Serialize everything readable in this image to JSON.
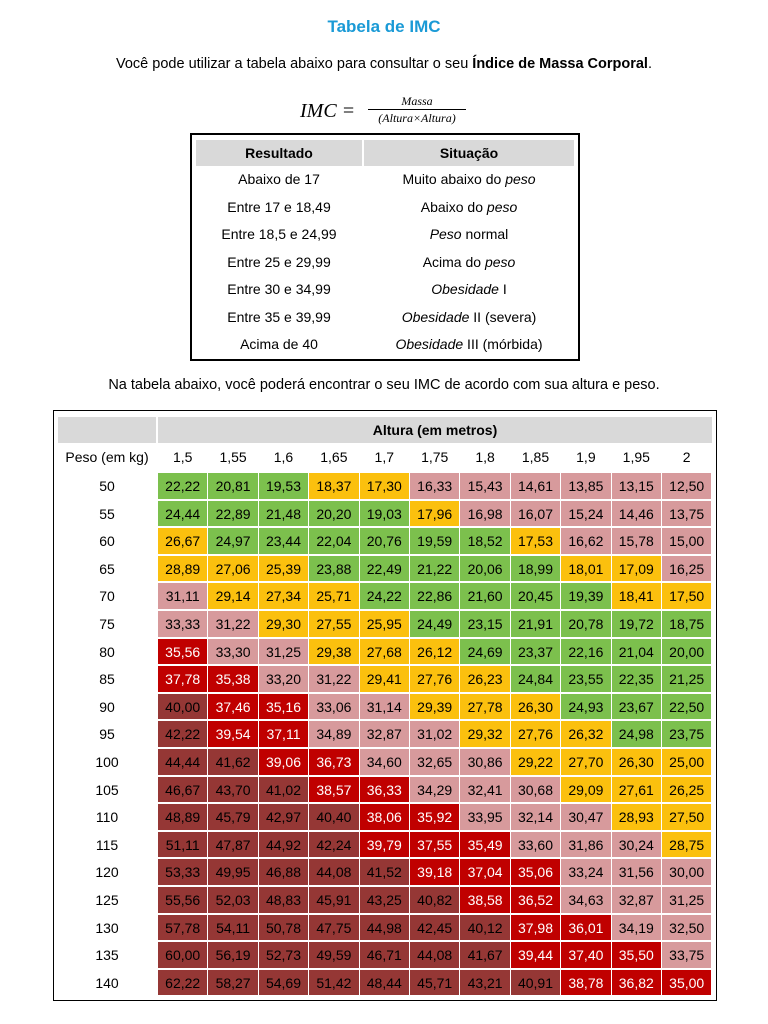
{
  "title": "Tabela de IMC",
  "intro": {
    "text": "Você pode utilizar a tabela abaixo para consultar o seu ",
    "bold": "Índice de Massa Corporal",
    "end": "."
  },
  "formula": {
    "lhs": "IMC =",
    "numerator": "Massa",
    "denominator": "(Altura×Altura)"
  },
  "results_table": {
    "headers": [
      "Resultado",
      "Situação"
    ],
    "rows": [
      {
        "result": "Abaixo de 17",
        "pre": "Muito abaixo do ",
        "em": "peso",
        "post": ""
      },
      {
        "result": "Entre 17 e 18,49",
        "pre": "Abaixo do ",
        "em": "peso",
        "post": ""
      },
      {
        "result": "Entre 18,5 e 24,99",
        "pre": "",
        "em": "Peso",
        "post": " normal"
      },
      {
        "result": "Entre 25 e 29,99",
        "pre": "Acima do ",
        "em": "peso",
        "post": ""
      },
      {
        "result": "Entre 30 e 34,99",
        "pre": "",
        "em": "Obesidade",
        "post": " I"
      },
      {
        "result": "Entre 35 e 39,99",
        "pre": "",
        "em": "Obesidade",
        "post": " II (severa)"
      },
      {
        "result": "Acima de 40",
        "pre": "",
        "em": "Obesidade",
        "post": " III (mórbida)"
      }
    ]
  },
  "middle_text": "Na tabela abaixo, você poderá encontrar o seu IMC de acordo com sua altura e peso.",
  "imc_grid": {
    "height_header": "Altura (em metros)",
    "weight_label": "Peso (em kg)",
    "heights": [
      "1,5",
      "1,55",
      "1,6",
      "1,65",
      "1,7",
      "1,75",
      "1,8",
      "1,85",
      "1,9",
      "1,95",
      "2"
    ],
    "colors": {
      "g": "#7cc04d",
      "y": "#fbc00e",
      "p": "#d79a9c",
      "r": "#c00000",
      "d": "#953735"
    },
    "rows": [
      {
        "weight": "50",
        "values": [
          "22,22",
          "20,81",
          "19,53",
          "18,37",
          "17,30",
          "16,33",
          "15,43",
          "14,61",
          "13,85",
          "13,15",
          "12,50"
        ],
        "classes": [
          "g",
          "g",
          "g",
          "y",
          "y",
          "p",
          "p",
          "p",
          "p",
          "p",
          "p"
        ]
      },
      {
        "weight": "55",
        "values": [
          "24,44",
          "22,89",
          "21,48",
          "20,20",
          "19,03",
          "17,96",
          "16,98",
          "16,07",
          "15,24",
          "14,46",
          "13,75"
        ],
        "classes": [
          "g",
          "g",
          "g",
          "g",
          "g",
          "y",
          "p",
          "p",
          "p",
          "p",
          "p"
        ]
      },
      {
        "weight": "60",
        "values": [
          "26,67",
          "24,97",
          "23,44",
          "22,04",
          "20,76",
          "19,59",
          "18,52",
          "17,53",
          "16,62",
          "15,78",
          "15,00"
        ],
        "classes": [
          "y",
          "g",
          "g",
          "g",
          "g",
          "g",
          "g",
          "y",
          "p",
          "p",
          "p"
        ]
      },
      {
        "weight": "65",
        "values": [
          "28,89",
          "27,06",
          "25,39",
          "23,88",
          "22,49",
          "21,22",
          "20,06",
          "18,99",
          "18,01",
          "17,09",
          "16,25"
        ],
        "classes": [
          "y",
          "y",
          "y",
          "g",
          "g",
          "g",
          "g",
          "g",
          "y",
          "y",
          "p"
        ]
      },
      {
        "weight": "70",
        "values": [
          "31,11",
          "29,14",
          "27,34",
          "25,71",
          "24,22",
          "22,86",
          "21,60",
          "20,45",
          "19,39",
          "18,41",
          "17,50"
        ],
        "classes": [
          "p",
          "y",
          "y",
          "y",
          "g",
          "g",
          "g",
          "g",
          "g",
          "y",
          "y"
        ]
      },
      {
        "weight": "75",
        "values": [
          "33,33",
          "31,22",
          "29,30",
          "27,55",
          "25,95",
          "24,49",
          "23,15",
          "21,91",
          "20,78",
          "19,72",
          "18,75"
        ],
        "classes": [
          "p",
          "p",
          "y",
          "y",
          "y",
          "g",
          "g",
          "g",
          "g",
          "g",
          "g"
        ]
      },
      {
        "weight": "80",
        "values": [
          "35,56",
          "33,30",
          "31,25",
          "29,38",
          "27,68",
          "26,12",
          "24,69",
          "23,37",
          "22,16",
          "21,04",
          "20,00"
        ],
        "classes": [
          "r",
          "p",
          "p",
          "y",
          "y",
          "y",
          "g",
          "g",
          "g",
          "g",
          "g"
        ]
      },
      {
        "weight": "85",
        "values": [
          "37,78",
          "35,38",
          "33,20",
          "31,22",
          "29,41",
          "27,76",
          "26,23",
          "24,84",
          "23,55",
          "22,35",
          "21,25"
        ],
        "classes": [
          "r",
          "r",
          "p",
          "p",
          "y",
          "y",
          "y",
          "g",
          "g",
          "g",
          "g"
        ]
      },
      {
        "weight": "90",
        "values": [
          "40,00",
          "37,46",
          "35,16",
          "33,06",
          "31,14",
          "29,39",
          "27,78",
          "26,30",
          "24,93",
          "23,67",
          "22,50"
        ],
        "classes": [
          "d",
          "r",
          "r",
          "p",
          "p",
          "y",
          "y",
          "y",
          "g",
          "g",
          "g"
        ]
      },
      {
        "weight": "95",
        "values": [
          "42,22",
          "39,54",
          "37,11",
          "34,89",
          "32,87",
          "31,02",
          "29,32",
          "27,76",
          "26,32",
          "24,98",
          "23,75"
        ],
        "classes": [
          "d",
          "r",
          "r",
          "p",
          "p",
          "p",
          "y",
          "y",
          "y",
          "g",
          "g"
        ]
      },
      {
        "weight": "100",
        "values": [
          "44,44",
          "41,62",
          "39,06",
          "36,73",
          "34,60",
          "32,65",
          "30,86",
          "29,22",
          "27,70",
          "26,30",
          "25,00"
        ],
        "classes": [
          "d",
          "d",
          "r",
          "r",
          "p",
          "p",
          "p",
          "y",
          "y",
          "y",
          "y"
        ]
      },
      {
        "weight": "105",
        "values": [
          "46,67",
          "43,70",
          "41,02",
          "38,57",
          "36,33",
          "34,29",
          "32,41",
          "30,68",
          "29,09",
          "27,61",
          "26,25"
        ],
        "classes": [
          "d",
          "d",
          "d",
          "r",
          "r",
          "p",
          "p",
          "p",
          "y",
          "y",
          "y"
        ]
      },
      {
        "weight": "110",
        "values": [
          "48,89",
          "45,79",
          "42,97",
          "40,40",
          "38,06",
          "35,92",
          "33,95",
          "32,14",
          "30,47",
          "28,93",
          "27,50"
        ],
        "classes": [
          "d",
          "d",
          "d",
          "d",
          "r",
          "r",
          "p",
          "p",
          "p",
          "y",
          "y"
        ]
      },
      {
        "weight": "115",
        "values": [
          "51,11",
          "47,87",
          "44,92",
          "42,24",
          "39,79",
          "37,55",
          "35,49",
          "33,60",
          "31,86",
          "30,24",
          "28,75"
        ],
        "classes": [
          "d",
          "d",
          "d",
          "d",
          "r",
          "r",
          "r",
          "p",
          "p",
          "p",
          "y"
        ]
      },
      {
        "weight": "120",
        "values": [
          "53,33",
          "49,95",
          "46,88",
          "44,08",
          "41,52",
          "39,18",
          "37,04",
          "35,06",
          "33,24",
          "31,56",
          "30,00"
        ],
        "classes": [
          "d",
          "d",
          "d",
          "d",
          "d",
          "r",
          "r",
          "r",
          "p",
          "p",
          "p"
        ]
      },
      {
        "weight": "125",
        "values": [
          "55,56",
          "52,03",
          "48,83",
          "45,91",
          "43,25",
          "40,82",
          "38,58",
          "36,52",
          "34,63",
          "32,87",
          "31,25"
        ],
        "classes": [
          "d",
          "d",
          "d",
          "d",
          "d",
          "d",
          "r",
          "r",
          "p",
          "p",
          "p"
        ]
      },
      {
        "weight": "130",
        "values": [
          "57,78",
          "54,11",
          "50,78",
          "47,75",
          "44,98",
          "42,45",
          "40,12",
          "37,98",
          "36,01",
          "34,19",
          "32,50"
        ],
        "classes": [
          "d",
          "d",
          "d",
          "d",
          "d",
          "d",
          "d",
          "r",
          "r",
          "p",
          "p"
        ]
      },
      {
        "weight": "135",
        "values": [
          "60,00",
          "56,19",
          "52,73",
          "49,59",
          "46,71",
          "44,08",
          "41,67",
          "39,44",
          "37,40",
          "35,50",
          "33,75"
        ],
        "classes": [
          "d",
          "d",
          "d",
          "d",
          "d",
          "d",
          "d",
          "r",
          "r",
          "r",
          "p"
        ]
      },
      {
        "weight": "140",
        "values": [
          "62,22",
          "58,27",
          "54,69",
          "51,42",
          "48,44",
          "45,71",
          "43,21",
          "40,91",
          "38,78",
          "36,82",
          "35,00"
        ],
        "classes": [
          "d",
          "d",
          "d",
          "d",
          "d",
          "d",
          "d",
          "d",
          "r",
          "r",
          "r"
        ]
      }
    ]
  }
}
